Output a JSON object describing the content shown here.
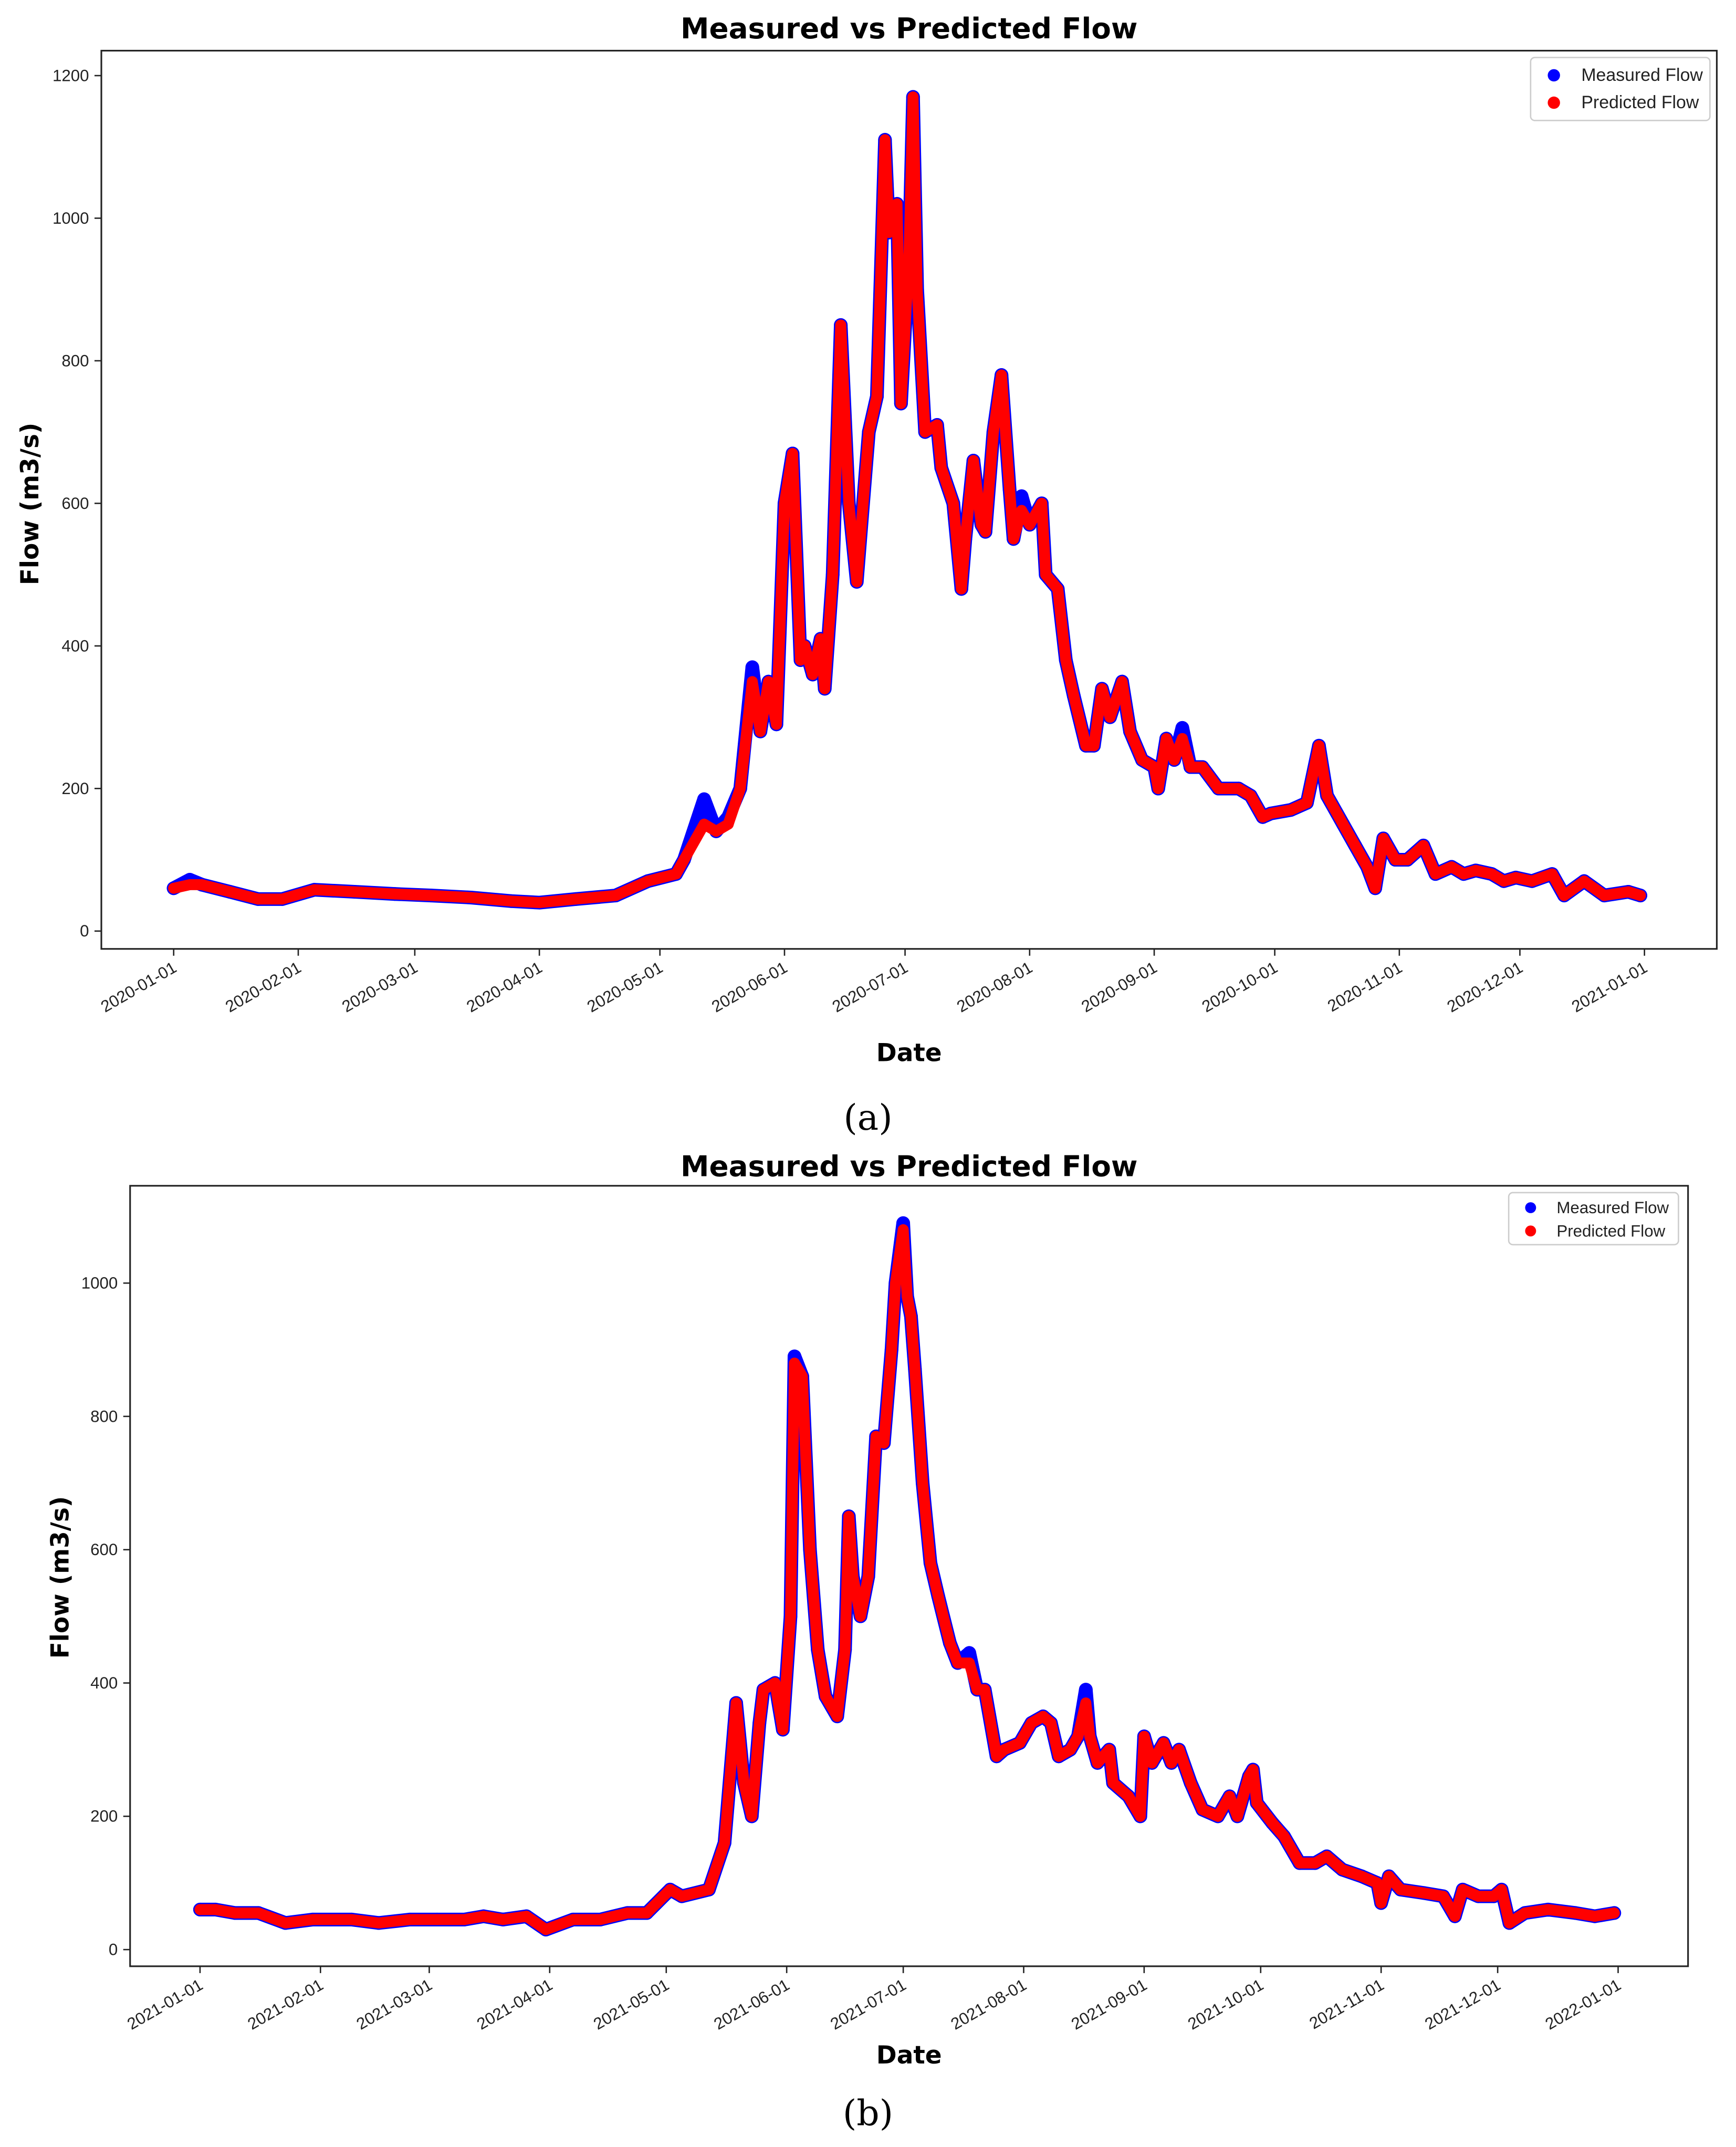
{
  "captions": [
    "(a)",
    "(b)"
  ],
  "colors": {
    "measured": "#0000ff",
    "predicted": "#ff0000"
  },
  "chart_data": [
    {
      "type": "scatter",
      "title": "Measured vs Predicted Flow",
      "xlabel": "Date",
      "ylabel": "Flow (m3/s)",
      "xlim": [
        "2019-12-14",
        "2021-01-19"
      ],
      "ylim": [
        -25,
        1235
      ],
      "grid": false,
      "legend_position": "top-right",
      "x_ticks": [
        "2020-01-01",
        "2020-02-01",
        "2020-03-01",
        "2020-04-01",
        "2020-05-01",
        "2020-06-01",
        "2020-07-01",
        "2020-08-01",
        "2020-09-01",
        "2020-10-01",
        "2020-11-01",
        "2020-12-01",
        "2021-01-01"
      ],
      "y_ticks": [
        0,
        200,
        400,
        600,
        800,
        1000,
        1200
      ],
      "x": [
        "2020-01-01",
        "2020-01-05",
        "2020-01-08",
        "2020-01-15",
        "2020-01-22",
        "2020-01-28",
        "2020-02-05",
        "2020-02-15",
        "2020-02-25",
        "2020-03-05",
        "2020-03-15",
        "2020-03-25",
        "2020-04-01",
        "2020-04-10",
        "2020-04-20",
        "2020-04-28",
        "2020-05-05",
        "2020-05-07",
        "2020-05-12",
        "2020-05-15",
        "2020-05-18",
        "2020-05-21",
        "2020-05-24",
        "2020-05-26",
        "2020-05-28",
        "2020-05-30",
        "2020-06-01",
        "2020-06-03",
        "2020-06-05",
        "2020-06-06",
        "2020-06-08",
        "2020-06-10",
        "2020-06-11",
        "2020-06-13",
        "2020-06-15",
        "2020-06-17",
        "2020-06-19",
        "2020-06-22",
        "2020-06-24",
        "2020-06-26",
        "2020-06-27",
        "2020-06-29",
        "2020-06-30",
        "2020-07-02",
        "2020-07-03",
        "2020-07-04",
        "2020-07-06",
        "2020-07-09",
        "2020-07-10",
        "2020-07-13",
        "2020-07-15",
        "2020-07-16",
        "2020-07-18",
        "2020-07-20",
        "2020-07-21",
        "2020-07-23",
        "2020-07-25",
        "2020-07-27",
        "2020-07-28",
        "2020-07-30",
        "2020-08-01",
        "2020-08-04",
        "2020-08-05",
        "2020-08-08",
        "2020-08-10",
        "2020-08-12",
        "2020-08-15",
        "2020-08-17",
        "2020-08-19",
        "2020-08-21",
        "2020-08-24",
        "2020-08-26",
        "2020-08-29",
        "2020-09-01",
        "2020-09-02",
        "2020-09-04",
        "2020-09-06",
        "2020-09-08",
        "2020-09-10",
        "2020-09-13",
        "2020-09-17",
        "2020-09-22",
        "2020-09-25",
        "2020-09-28",
        "2020-09-30",
        "2020-10-05",
        "2020-10-09",
        "2020-10-12",
        "2020-10-14",
        "2020-10-18",
        "2020-10-21",
        "2020-10-24",
        "2020-10-26",
        "2020-10-28",
        "2020-10-31",
        "2020-11-03",
        "2020-11-07",
        "2020-11-10",
        "2020-11-14",
        "2020-11-17",
        "2020-11-20",
        "2020-11-24",
        "2020-11-27",
        "2020-11-30",
        "2020-12-04",
        "2020-12-09",
        "2020-12-12",
        "2020-12-17",
        "2020-12-22",
        "2020-12-28",
        "2020-12-31"
      ],
      "series": [
        {
          "name": "Measured Flow",
          "color": "#0000ff",
          "values": [
            60,
            72,
            65,
            55,
            45,
            45,
            58,
            55,
            52,
            50,
            47,
            42,
            40,
            45,
            50,
            70,
            80,
            100,
            185,
            140,
            160,
            200,
            370,
            280,
            350,
            290,
            600,
            670,
            380,
            400,
            360,
            410,
            340,
            500,
            850,
            600,
            490,
            700,
            750,
            1110,
            980,
            1020,
            740,
            950,
            1170,
            900,
            700,
            710,
            650,
            600,
            480,
            550,
            660,
            570,
            560,
            700,
            780,
            620,
            550,
            610,
            570,
            600,
            500,
            480,
            380,
            330,
            260,
            260,
            340,
            300,
            350,
            280,
            240,
            230,
            200,
            270,
            240,
            285,
            230,
            230,
            200,
            200,
            190,
            160,
            165,
            170,
            180,
            260,
            190,
            150,
            120,
            90,
            60,
            130,
            100,
            100,
            120,
            80,
            90,
            80,
            85,
            80,
            70,
            75,
            70,
            80,
            50,
            70,
            50,
            55,
            50
          ]
        },
        {
          "name": "Predicted Flow",
          "color": "#ff0000",
          "values": [
            60,
            65,
            65,
            55,
            45,
            45,
            58,
            55,
            52,
            50,
            47,
            42,
            40,
            45,
            50,
            70,
            80,
            100,
            150,
            140,
            150,
            200,
            350,
            280,
            350,
            290,
            600,
            670,
            380,
            400,
            360,
            410,
            340,
            500,
            850,
            600,
            490,
            700,
            750,
            1110,
            980,
            1020,
            740,
            950,
            1170,
            900,
            700,
            710,
            650,
            600,
            480,
            550,
            660,
            570,
            560,
            700,
            780,
            620,
            550,
            590,
            570,
            600,
            500,
            480,
            380,
            330,
            260,
            260,
            340,
            300,
            350,
            280,
            240,
            230,
            200,
            270,
            240,
            270,
            230,
            230,
            200,
            200,
            190,
            160,
            165,
            170,
            180,
            260,
            190,
            150,
            120,
            90,
            60,
            130,
            100,
            100,
            120,
            80,
            90,
            80,
            85,
            80,
            70,
            75,
            70,
            80,
            50,
            70,
            50,
            55,
            50
          ]
        }
      ]
    },
    {
      "type": "scatter",
      "title": "Measured vs Predicted Flow",
      "xlabel": "Date",
      "ylabel": "Flow (m3/s)",
      "xlim": [
        "2020-12-14",
        "2022-01-19"
      ],
      "ylim": [
        -25,
        1146
      ],
      "grid": false,
      "legend_position": "top-right",
      "x_ticks": [
        "2021-01-01",
        "2021-02-01",
        "2021-03-01",
        "2021-04-01",
        "2021-05-01",
        "2021-06-01",
        "2021-07-01",
        "2021-08-01",
        "2021-09-01",
        "2021-10-01",
        "2021-11-01",
        "2021-12-01",
        "2022-01-01"
      ],
      "y_ticks": [
        0,
        200,
        400,
        600,
        800,
        1000
      ],
      "x": [
        "2021-01-01",
        "2021-01-05",
        "2021-01-10",
        "2021-01-16",
        "2021-01-23",
        "2021-01-30",
        "2021-02-09",
        "2021-02-16",
        "2021-02-24",
        "2021-03-03",
        "2021-03-10",
        "2021-03-15",
        "2021-03-20",
        "2021-03-26",
        "2021-03-31",
        "2021-04-07",
        "2021-04-14",
        "2021-04-21",
        "2021-04-26",
        "2021-05-02",
        "2021-05-05",
        "2021-05-12",
        "2021-05-16",
        "2021-05-19",
        "2021-05-21",
        "2021-05-23",
        "2021-05-25",
        "2021-05-26",
        "2021-05-29",
        "2021-05-31",
        "2021-06-02",
        "2021-06-03",
        "2021-06-05",
        "2021-06-07",
        "2021-06-09",
        "2021-06-11",
        "2021-06-14",
        "2021-06-16",
        "2021-06-17",
        "2021-06-18",
        "2021-06-20",
        "2021-06-22",
        "2021-06-24",
        "2021-06-26",
        "2021-06-28",
        "2021-06-29",
        "2021-07-01",
        "2021-07-02",
        "2021-07-03",
        "2021-07-04",
        "2021-07-06",
        "2021-07-08",
        "2021-07-10",
        "2021-07-13",
        "2021-07-15",
        "2021-07-18",
        "2021-07-20",
        "2021-07-22",
        "2021-07-25",
        "2021-07-27",
        "2021-07-31",
        "2021-08-03",
        "2021-08-06",
        "2021-08-08",
        "2021-08-10",
        "2021-08-13",
        "2021-08-15",
        "2021-08-17",
        "2021-08-18",
        "2021-08-20",
        "2021-08-23",
        "2021-08-24",
        "2021-08-28",
        "2021-08-31",
        "2021-09-01",
        "2021-09-03",
        "2021-09-06",
        "2021-09-08",
        "2021-09-10",
        "2021-09-13",
        "2021-09-16",
        "2021-09-20",
        "2021-09-23",
        "2021-09-25",
        "2021-09-28",
        "2021-09-29",
        "2021-09-30",
        "2021-10-04",
        "2021-10-07",
        "2021-10-11",
        "2021-10-15",
        "2021-10-18",
        "2021-10-22",
        "2021-10-27",
        "2021-10-31",
        "2021-11-01",
        "2021-11-03",
        "2021-11-06",
        "2021-11-12",
        "2021-11-17",
        "2021-11-20",
        "2021-11-22",
        "2021-11-26",
        "2021-11-30",
        "2021-12-02",
        "2021-12-04",
        "2021-12-08",
        "2021-12-14",
        "2021-12-21",
        "2021-12-26",
        "2021-12-31"
      ],
      "series": [
        {
          "name": "Measured Flow",
          "color": "#0000ff",
          "values": [
            60,
            60,
            55,
            55,
            40,
            45,
            45,
            40,
            45,
            45,
            45,
            50,
            45,
            50,
            30,
            45,
            45,
            55,
            55,
            90,
            80,
            90,
            160,
            370,
            250,
            200,
            340,
            390,
            400,
            330,
            500,
            890,
            860,
            600,
            450,
            380,
            350,
            450,
            650,
            560,
            500,
            560,
            770,
            760,
            900,
            1000,
            1090,
            980,
            950,
            870,
            700,
            580,
            530,
            460,
            430,
            445,
            390,
            390,
            290,
            300,
            310,
            340,
            350,
            340,
            290,
            300,
            320,
            390,
            320,
            280,
            300,
            250,
            230,
            200,
            320,
            280,
            310,
            280,
            300,
            250,
            210,
            200,
            230,
            200,
            260,
            270,
            220,
            190,
            170,
            130,
            130,
            140,
            120,
            110,
            100,
            70,
            110,
            90,
            85,
            80,
            50,
            90,
            80,
            80,
            90,
            40,
            55,
            60,
            55,
            50,
            55
          ]
        },
        {
          "name": "Predicted Flow",
          "color": "#ff0000",
          "values": [
            60,
            60,
            55,
            55,
            40,
            45,
            45,
            40,
            45,
            45,
            45,
            50,
            45,
            50,
            30,
            45,
            45,
            55,
            55,
            90,
            80,
            90,
            160,
            370,
            250,
            200,
            340,
            390,
            400,
            330,
            500,
            880,
            860,
            600,
            450,
            380,
            350,
            450,
            650,
            560,
            500,
            560,
            770,
            760,
            900,
            1000,
            1080,
            980,
            950,
            870,
            700,
            580,
            530,
            460,
            430,
            430,
            390,
            390,
            290,
            300,
            310,
            340,
            350,
            340,
            290,
            300,
            320,
            370,
            320,
            280,
            300,
            250,
            230,
            200,
            320,
            280,
            310,
            280,
            300,
            250,
            210,
            200,
            230,
            200,
            260,
            270,
            220,
            190,
            170,
            130,
            130,
            140,
            120,
            110,
            100,
            70,
            110,
            90,
            85,
            80,
            50,
            90,
            80,
            80,
            90,
            40,
            55,
            60,
            55,
            50,
            55
          ]
        }
      ]
    }
  ]
}
